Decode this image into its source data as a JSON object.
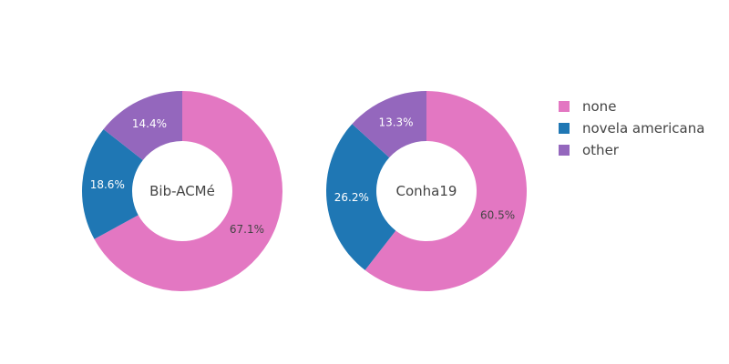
{
  "chart_data": {
    "type": "pie",
    "hole": true,
    "legend": {
      "position": "top-right",
      "entries": [
        {
          "name": "none",
          "color": "#e377c2"
        },
        {
          "name": "novela americana",
          "color": "#1f77b4"
        },
        {
          "name": "other",
          "color": "#9467bd"
        }
      ]
    },
    "charts": [
      {
        "center_label": "Bib-ACMé",
        "slices": [
          {
            "category": "none",
            "value": 67.1,
            "label": "67.1%"
          },
          {
            "category": "novela americana",
            "value": 18.6,
            "label": "18.6%"
          },
          {
            "category": "other",
            "value": 14.4,
            "label": "14.4%"
          }
        ]
      },
      {
        "center_label": "Conha19",
        "slices": [
          {
            "category": "none",
            "value": 60.5,
            "label": "60.5%"
          },
          {
            "category": "novela americana",
            "value": 26.2,
            "label": "26.2%"
          },
          {
            "category": "other",
            "value": 13.3,
            "label": "13.3%"
          }
        ]
      }
    ]
  }
}
